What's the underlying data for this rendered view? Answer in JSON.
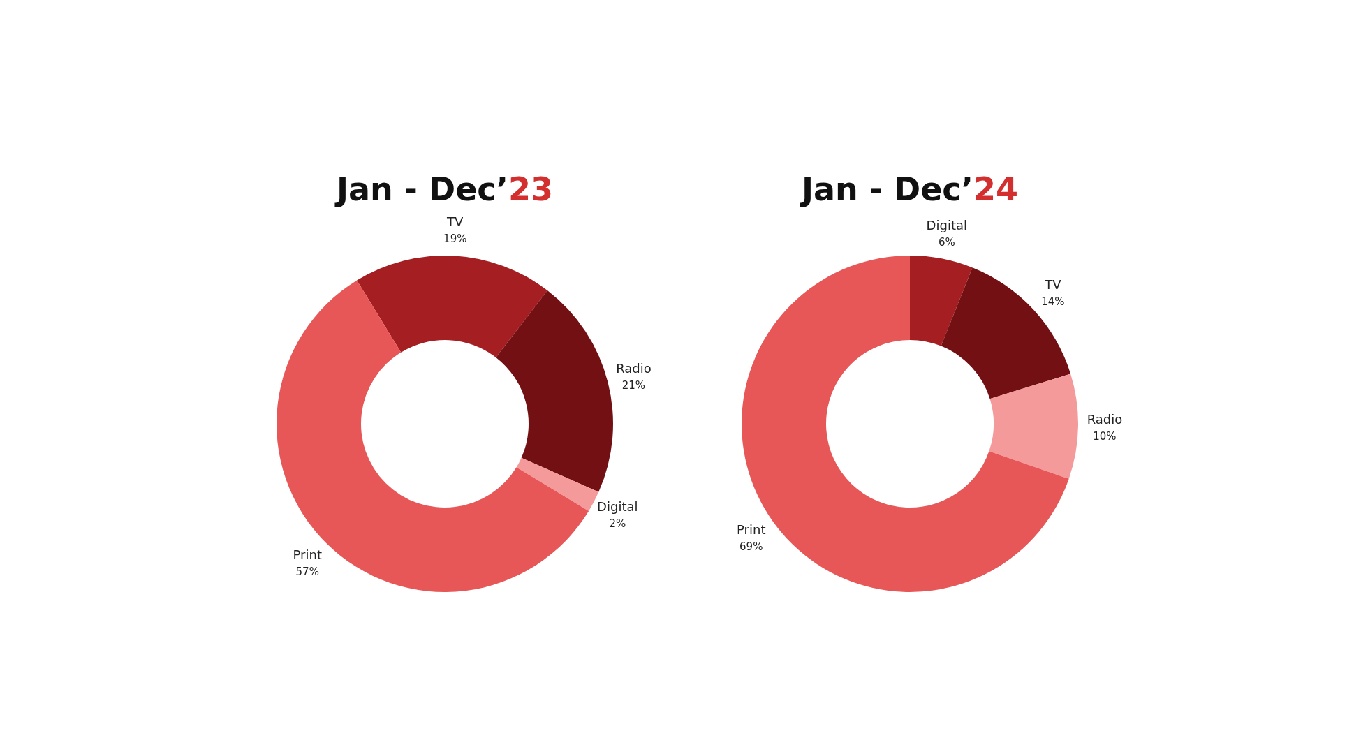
{
  "chart_data": [
    {
      "type": "donut",
      "title": "Jan - Dec’23",
      "categories": [
        "TV",
        "Radio",
        "Digital",
        "Print"
      ],
      "values": [
        19,
        21,
        2,
        57
      ],
      "value_labels": [
        "19%",
        "21%",
        "2%",
        "57%"
      ],
      "colors": [
        "#a51e22",
        "#731014",
        "#f49a9a",
        "#e85757"
      ]
    },
    {
      "type": "donut",
      "title": "Jan - Dec’24",
      "categories": [
        "Digital",
        "TV",
        "Radio",
        "Print"
      ],
      "values": [
        6,
        14,
        10,
        69
      ],
      "value_labels": [
        "6%",
        "14%",
        "10%",
        "69%"
      ],
      "colors": [
        "#a51e22",
        "#731014",
        "#f49a9a",
        "#e85757"
      ]
    }
  ]
}
